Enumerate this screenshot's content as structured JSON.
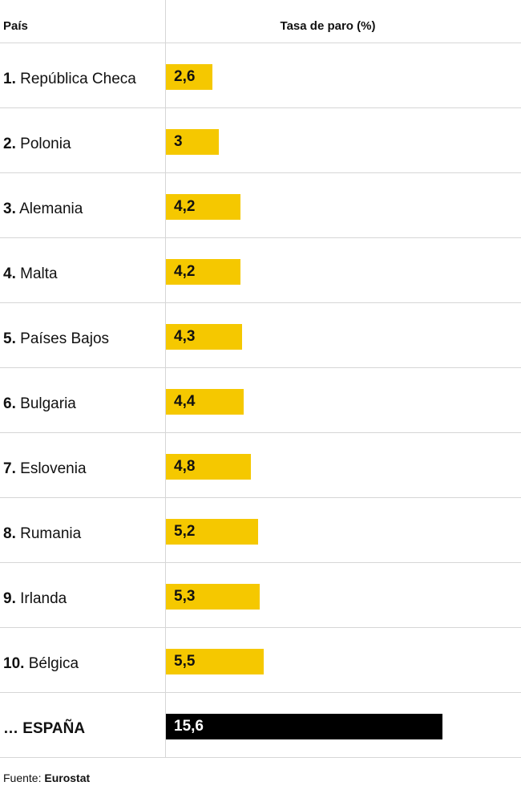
{
  "header": {
    "country_label": "País",
    "rate_label": "Tasa de paro (%)"
  },
  "footer": {
    "prefix": "Fuente:",
    "source": "Eurostat"
  },
  "colors": {
    "bar": "#f5c800",
    "highlight_bar": "#000000",
    "grid": "#d6d6d6"
  },
  "chart_data": {
    "type": "bar",
    "orientation": "horizontal",
    "xlabel": "Tasa de paro (%)",
    "xlim": [
      0,
      15.6
    ],
    "rows": [
      {
        "rank": "1.",
        "country": "República Checa",
        "value": 2.6,
        "label": "2,6",
        "highlight": false
      },
      {
        "rank": "2.",
        "country": "Polonia",
        "value": 3,
        "label": "3",
        "highlight": false
      },
      {
        "rank": "3.",
        "country": "Alemania",
        "value": 4.2,
        "label": "4,2",
        "highlight": false
      },
      {
        "rank": "4.",
        "country": "Malta",
        "value": 4.2,
        "label": "4,2",
        "highlight": false
      },
      {
        "rank": "5.",
        "country": "Países Bajos",
        "value": 4.3,
        "label": "4,3",
        "highlight": false
      },
      {
        "rank": "6.",
        "country": "Bulgaria",
        "value": 4.4,
        "label": "4,4",
        "highlight": false
      },
      {
        "rank": "7.",
        "country": "Eslovenia",
        "value": 4.8,
        "label": "4,8",
        "highlight": false
      },
      {
        "rank": "8.",
        "country": "Rumania",
        "value": 5.2,
        "label": "5,2",
        "highlight": false
      },
      {
        "rank": "9.",
        "country": "Irlanda",
        "value": 5.3,
        "label": "5,3",
        "highlight": false
      },
      {
        "rank": "10.",
        "country": "Bélgica",
        "value": 5.5,
        "label": "5,5",
        "highlight": false
      },
      {
        "rank": "…",
        "country": "ESPAÑA",
        "value": 15.6,
        "label": "15,6",
        "highlight": true
      }
    ]
  }
}
